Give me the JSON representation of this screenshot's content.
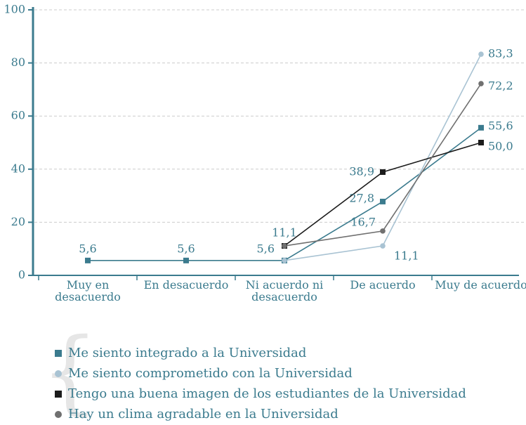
{
  "chart_data": {
    "type": "line",
    "categories": [
      "Muy en desacuerdo",
      "En desacuerdo",
      "Ni acuerdo ni desacuerdo",
      "De acuerdo",
      "Muy de acuerdo"
    ],
    "series": [
      {
        "name": "Me siento integrado a la Universidad",
        "color": "#3b7b8e",
        "marker": "square",
        "values": [
          5.6,
          5.6,
          5.6,
          27.8,
          55.6
        ],
        "value_labels": [
          "5,6",
          "5,6",
          "5,6",
          "27,8",
          "55,6"
        ]
      },
      {
        "name": "Me siento comprometido con la Universidad",
        "color": "#a9c3d3",
        "marker": "circle",
        "values": [
          null,
          null,
          5.6,
          11.1,
          83.3
        ],
        "value_labels": [
          null,
          null,
          null,
          "11,1",
          "83,3"
        ]
      },
      {
        "name": "Tengo una buena imagen de los estudiantes de la Universidad",
        "color": "#1c1c1c",
        "marker": "square",
        "values": [
          null,
          null,
          11.1,
          38.9,
          50.0
        ],
        "value_labels": [
          null,
          null,
          "11,1",
          "38,9",
          "50,0"
        ]
      },
      {
        "name": "Hay un clima agradable en la Universidad",
        "color": "#707070",
        "marker": "circle",
        "values": [
          null,
          null,
          11.1,
          16.7,
          72.2
        ],
        "value_labels": [
          null,
          null,
          null,
          "16,7",
          "72,2"
        ]
      }
    ],
    "ylim": [
      0,
      100
    ],
    "yticks": [
      0,
      20,
      40,
      60,
      80,
      100
    ],
    "grid": true
  }
}
